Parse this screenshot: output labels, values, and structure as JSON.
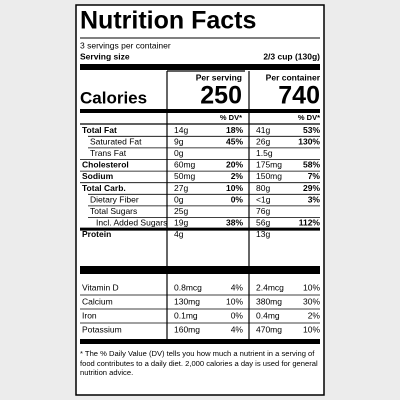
{
  "title": "Nutrition Facts",
  "servings": "3 servings per container",
  "serving_size": {
    "label": "Serving size",
    "value": "2/3 cup (130g)"
  },
  "columns": [
    "Per serving",
    "Per container"
  ],
  "calories": {
    "label": "Calories",
    "values": [
      "250",
      "740"
    ]
  },
  "dv_header": [
    "% DV*",
    "% DV*"
  ],
  "nutrients": [
    {
      "name": "Total Fat",
      "serving": [
        "14g",
        "18%"
      ],
      "container": [
        "41g",
        "53%"
      ]
    },
    {
      "name": "Saturated Fat",
      "serving": [
        "9g",
        "45%"
      ],
      "container": [
        "26g",
        "130%"
      ]
    },
    {
      "name": "Trans Fat",
      "serving": [
        "0g"
      ],
      "container": [
        "1.5g"
      ]
    },
    {
      "name": "Cholesterol",
      "serving": [
        "60mg",
        "20%"
      ],
      "container": [
        "175mg",
        "58%"
      ]
    },
    {
      "name": "Sodium",
      "serving": [
        "50mg",
        "2%"
      ],
      "container": [
        "150mg",
        "7%"
      ]
    },
    {
      "name": "Total Carb.",
      "serving": [
        "27g",
        "10%"
      ],
      "container": [
        "80g",
        "29%"
      ]
    },
    {
      "name": "Dietary Fiber",
      "serving": [
        "0g",
        "0%"
      ],
      "container": [
        "<1g",
        "3%"
      ]
    },
    {
      "name": "Total Sugars",
      "serving": [
        "25g"
      ],
      "container": [
        "76g"
      ]
    },
    {
      "name": "Incl. Added Sugars",
      "serving": [
        "19g",
        "38%"
      ],
      "container": [
        "56g",
        "112%"
      ]
    },
    {
      "name": "Protein",
      "serving": [
        "4g"
      ],
      "container": [
        "13g"
      ]
    }
  ],
  "vitamins": [
    {
      "name": "Vitamin D",
      "serving": [
        "0.8mcg",
        "4%"
      ],
      "container": [
        "2.4mcg",
        "10%"
      ]
    },
    {
      "name": "Calcium",
      "serving": [
        "130mg",
        "10%"
      ],
      "container": [
        "380mg",
        "30%"
      ]
    },
    {
      "name": "Iron",
      "serving": [
        "0.1mg",
        "0%"
      ],
      "container": [
        "0.4mg",
        "2%"
      ]
    },
    {
      "name": "Potassium",
      "serving": [
        "160mg",
        "4%"
      ],
      "container": [
        "470mg",
        "10%"
      ]
    }
  ],
  "footnote": "* The % Daily Value (DV) tells you how much a nutrient in a serving of food contributes to a daily diet. 2,000 calories a day is used for general nutrition advice."
}
